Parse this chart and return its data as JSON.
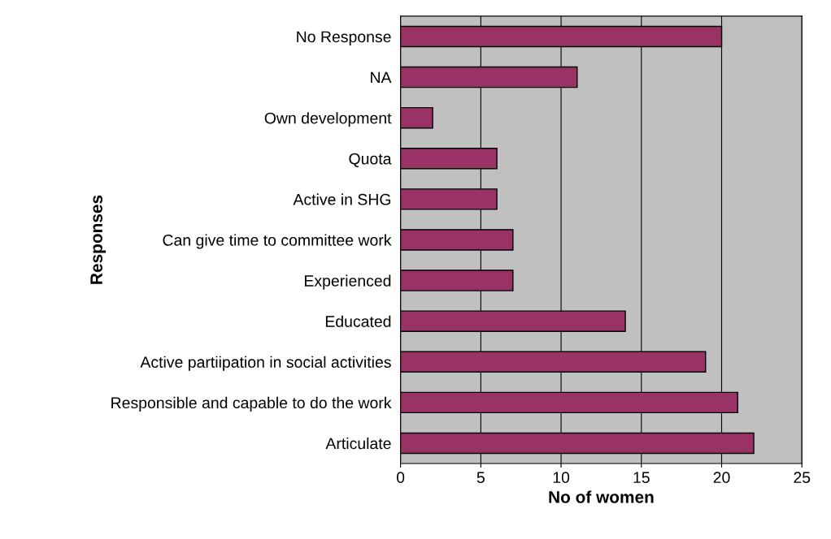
{
  "chart_data": {
    "type": "bar",
    "orientation": "horizontal",
    "xlabel": "No of women",
    "ylabel": "Responses",
    "categories": [
      "No Response",
      "NA",
      "Own development",
      "Quota",
      "Active in SHG",
      "Can give time to committee work",
      "Experienced",
      "Educated",
      "Active partiipation in social activities",
      "Responsible and capable to do the work",
      "Articulate"
    ],
    "values": [
      20,
      11,
      2,
      6,
      6,
      7,
      7,
      14,
      19,
      21,
      22
    ],
    "color": "#993366",
    "xlim": [
      0,
      25
    ],
    "xticks": [
      0,
      5,
      10,
      15,
      20,
      25
    ],
    "grid": "x"
  }
}
